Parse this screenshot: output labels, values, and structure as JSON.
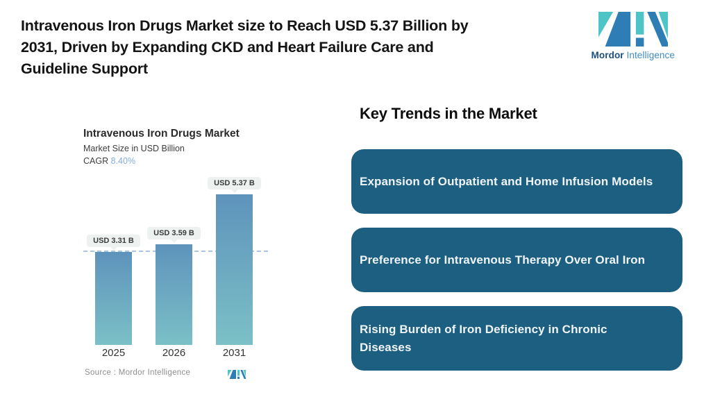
{
  "header": {
    "title_lines": [
      "Intravenous Iron Drugs Market size to Reach USD 5.37 Billion by",
      "2031, Driven by Expanding CKD and Heart Failure Care and",
      "Guideline Support"
    ]
  },
  "logo": {
    "name_bold": "Mordor",
    "name_light": "Intelligence"
  },
  "chart": {
    "title": "Intravenous Iron Drugs Market",
    "subtitle": "Market Size in USD Billion",
    "cagr_label": "CAGR",
    "cagr_value": "8.40%",
    "source": "Source :  Mordor Intelligence"
  },
  "chart_data": {
    "type": "bar",
    "title": "Intravenous Iron Drugs Market",
    "ylabel": "Market Size in USD Billion",
    "cagr": "8.40%",
    "categories": [
      "2025",
      "2026",
      "2031"
    ],
    "values": [
      3.31,
      3.59,
      5.37
    ],
    "labels": [
      "USD 3.31 B",
      "USD 3.59 B",
      "USD 5.37 B"
    ],
    "reference_line_value": 3.31,
    "ylim": [
      0,
      6
    ],
    "grid": false,
    "legend": "none"
  },
  "trends": {
    "heading": "Key Trends in the Market",
    "items": [
      "Expansion of Outpatient and Home Infusion Models",
      "Preference for Intravenous Therapy Over Oral Iron",
      "Rising Burden of Iron Deficiency in Chronic Diseases"
    ]
  },
  "colors": {
    "brand_teal": "#4FC4C6",
    "brand_blue": "#2E7EB5",
    "trend_box_bg": "#1D5F80",
    "trend_box_text": "#EFF4F6",
    "bar_gradient_top": "#5E93BC",
    "bar_gradient_bottom": "#7BC0C6",
    "value_pill_bg": "#EDF1F0",
    "reference_line": "#A9C6DE",
    "cagr_value_text": "#85ACDE",
    "source_text": "#8F8F8F"
  }
}
